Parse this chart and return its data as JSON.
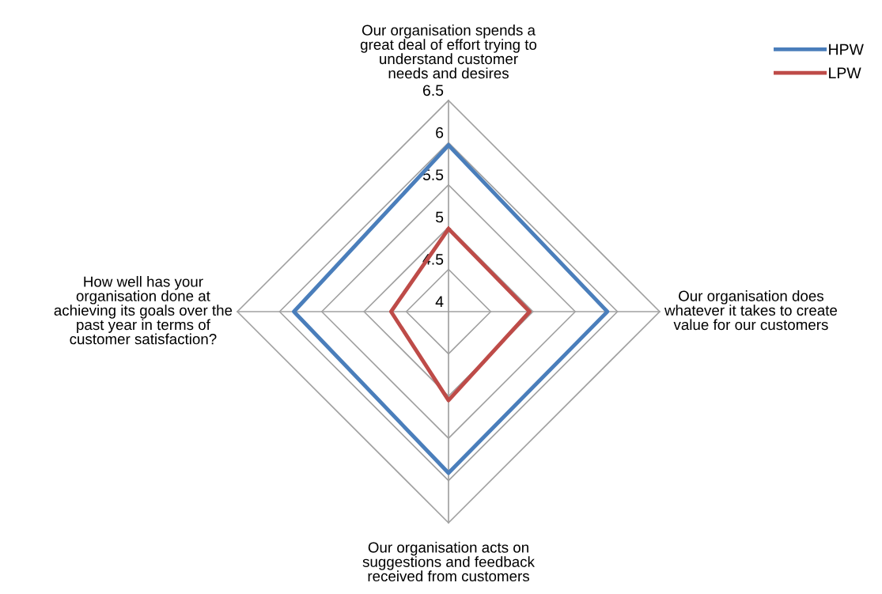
{
  "chart_data": {
    "type": "radar",
    "categories": [
      "Our organisation spends a\ngreat deal of effort trying to\nunderstand customer\nneeds and desires",
      "Our organisation does\nwhatever it takes to create\nvalue for our customers",
      "Our organisation acts on\nsuggestions and feedback\nreceived from customers",
      "How well has your\norganisation done at\nachieving its goals over the\npast year in terms of\ncustomer satisfaction?"
    ],
    "series": [
      {
        "name": "HPW",
        "color": "#4a7ebb",
        "values": [
          5.97,
          5.88,
          5.91,
          5.83
        ]
      },
      {
        "name": "LPW",
        "color": "#be4b48",
        "values": [
          4.98,
          4.96,
          5.05,
          4.68
        ]
      }
    ],
    "ylim": [
      4,
      6.5
    ],
    "yticks": [
      4,
      4.5,
      5,
      5.5,
      6,
      6.5
    ],
    "grid": true,
    "legend": "top right",
    "marker": "none",
    "line_style": "solid"
  }
}
